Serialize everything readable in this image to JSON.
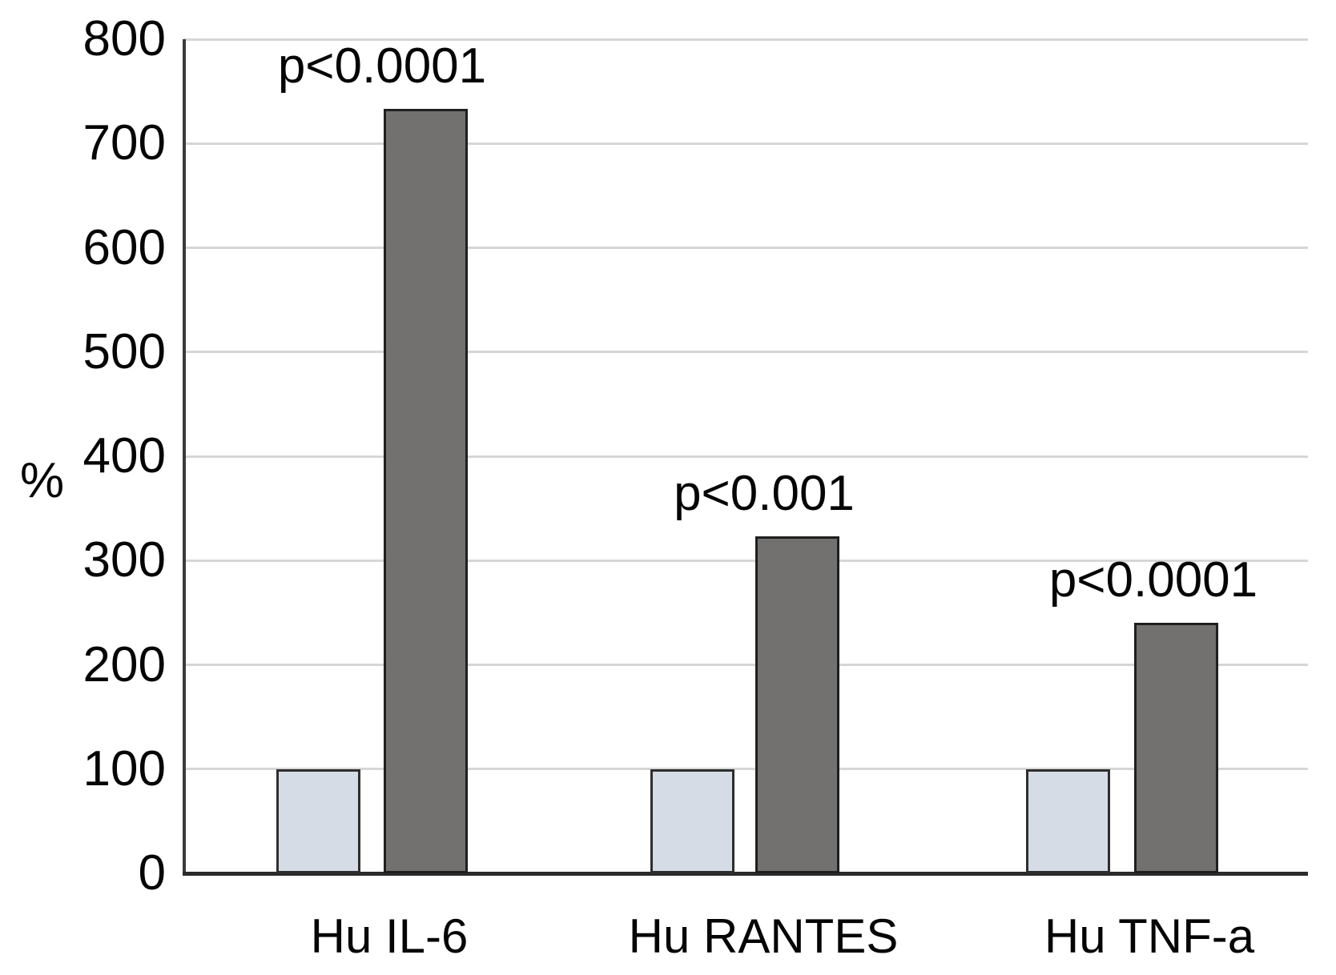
{
  "chart_data": {
    "type": "bar",
    "title": "",
    "xlabel": "",
    "ylabel": "%",
    "ylim": [
      0,
      800
    ],
    "ytick_interval": 100,
    "yticks": [
      0,
      100,
      200,
      300,
      400,
      500,
      600,
      700,
      800
    ],
    "grid": true,
    "legend": "none",
    "categories": [
      "Hu IL-6",
      "Hu RANTES",
      "Hu TNF-a"
    ],
    "series": [
      {
        "name": "light",
        "color": "#d6dce5",
        "values": [
          100,
          100,
          100
        ]
      },
      {
        "name": "dark",
        "color": "#737070",
        "values": [
          733,
          323,
          240
        ]
      }
    ],
    "annotations": [
      {
        "category": "Hu IL-6",
        "text": "p<0.0001"
      },
      {
        "category": "Hu RANTES",
        "text": "p<0.001"
      },
      {
        "category": "Hu TNF-a",
        "text": "p<0.0001"
      }
    ]
  },
  "colors": {
    "background": "#ffffff",
    "gridline": "#d6d6d6",
    "axis": "#2b2b2b",
    "light_bar_fill": "#d6dce5",
    "light_bar_border": "#2e2e2e",
    "dark_bar_fill": "#737070",
    "dark_bar_border": "#1f1f1f",
    "text": "#050505"
  }
}
